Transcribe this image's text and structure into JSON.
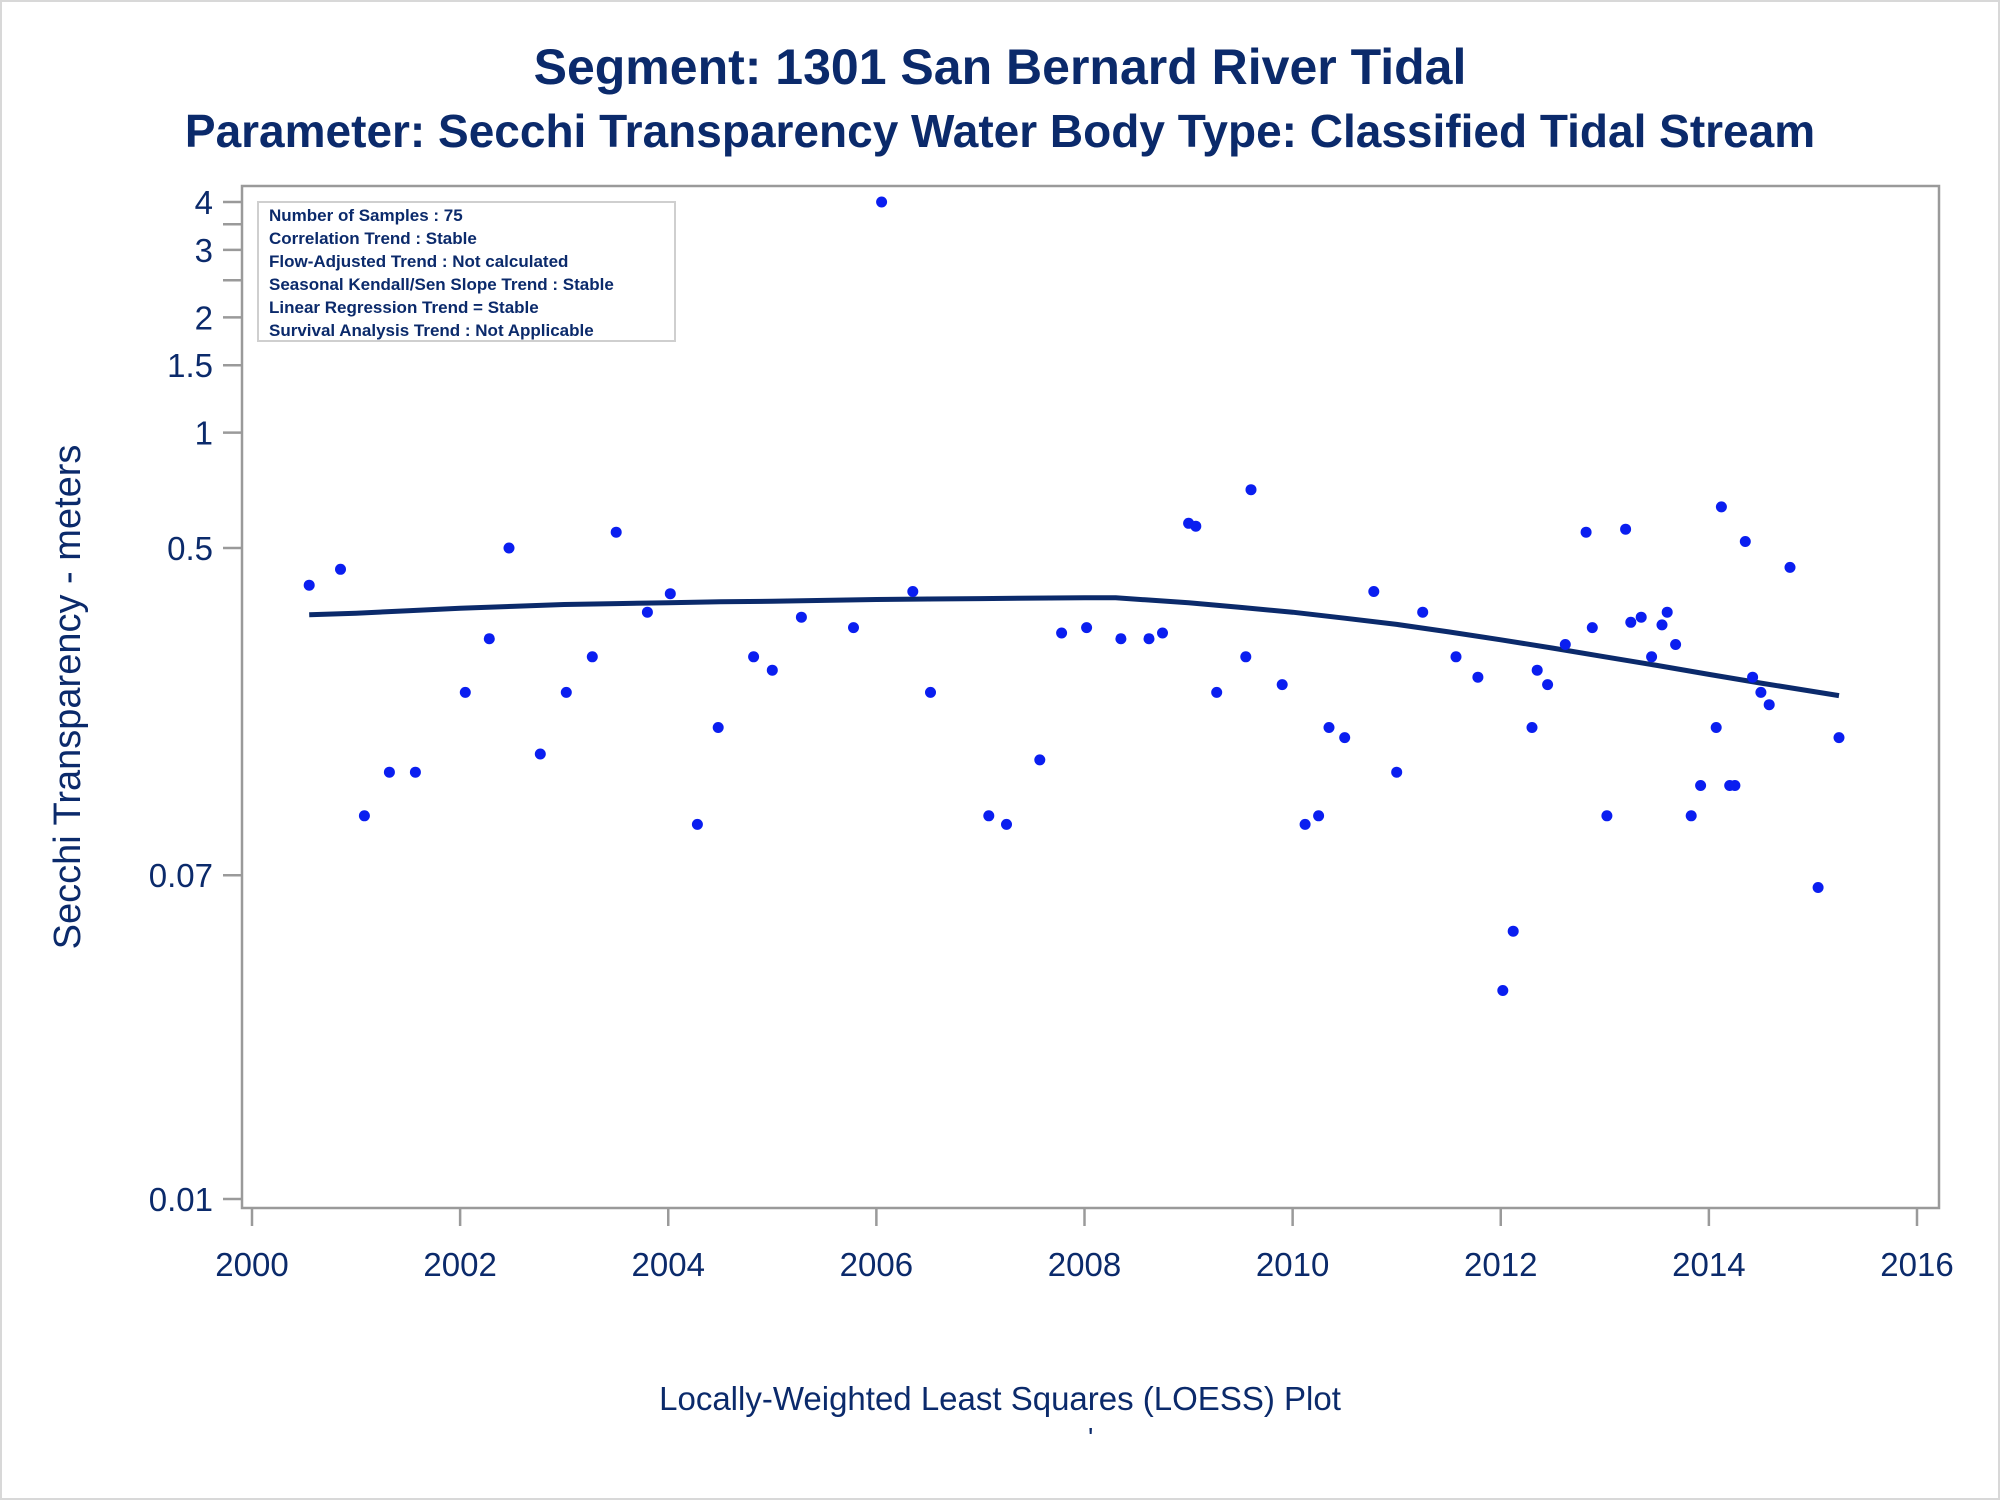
{
  "titles": {
    "line1": "Segment: 1301  San Bernard River Tidal",
    "line2": "Parameter: Secchi Transparency   Water Body Type: Classified Tidal Stream"
  },
  "stats_box": [
    "Number of Samples : 75",
    "Correlation Trend : Stable",
    "Flow-Adjusted Trend : Not calculated",
    "Seasonal Kendall/Sen Slope Trend : Stable",
    "Linear Regression Trend = Stable",
    "Survival Analysis Trend : Not Applicable"
  ],
  "footnote": "Locally-Weighted Least Squares (LOESS) Plot",
  "footnote_mark": "'",
  "colors": {
    "text": "#0b2a6b",
    "points": "#0a1ef0",
    "loess_line": "#0b2a6b",
    "axis": "#9a9a9a"
  },
  "chart_data": {
    "type": "scatter",
    "ylabel": "Secchi Transparency - meters",
    "xlabel": "",
    "y_scale": "log",
    "xlim": [
      2000,
      2016
    ],
    "ylim": [
      0.01,
      4
    ],
    "x_ticks": [
      2000,
      2002,
      2004,
      2006,
      2008,
      2010,
      2012,
      2014,
      2016
    ],
    "y_ticks_labeled": [
      0.01,
      0.07,
      0.5,
      1,
      1.5,
      2,
      3,
      4
    ],
    "y_ticks_minor": [
      2.5,
      3.5
    ],
    "grid": false,
    "series": [
      {
        "kind": "points",
        "values": [
          [
            2000.55,
            0.4
          ],
          [
            2000.85,
            0.44
          ],
          [
            2001.08,
            0.1
          ],
          [
            2001.32,
            0.13
          ],
          [
            2001.57,
            0.13
          ],
          [
            2002.05,
            0.21
          ],
          [
            2002.28,
            0.29
          ],
          [
            2002.47,
            0.5
          ],
          [
            2002.77,
            0.145
          ],
          [
            2003.02,
            0.21
          ],
          [
            2003.27,
            0.26
          ],
          [
            2003.5,
            0.55
          ],
          [
            2003.8,
            0.34
          ],
          [
            2004.02,
            0.38
          ],
          [
            2004.28,
            0.095
          ],
          [
            2004.48,
            0.17
          ],
          [
            2004.82,
            0.26
          ],
          [
            2005.0,
            0.24
          ],
          [
            2005.28,
            0.33
          ],
          [
            2005.78,
            0.31
          ],
          [
            2006.05,
            4.0
          ],
          [
            2006.35,
            0.385
          ],
          [
            2006.52,
            0.21
          ],
          [
            2007.08,
            0.1
          ],
          [
            2007.25,
            0.095
          ],
          [
            2007.57,
            0.14
          ],
          [
            2007.78,
            0.3
          ],
          [
            2008.02,
            0.31
          ],
          [
            2008.35,
            0.29
          ],
          [
            2008.62,
            0.29
          ],
          [
            2008.75,
            0.3
          ],
          [
            2009.0,
            0.58
          ],
          [
            2009.07,
            0.57
          ],
          [
            2009.27,
            0.21
          ],
          [
            2009.55,
            0.26
          ],
          [
            2009.6,
            0.71
          ],
          [
            2009.9,
            0.22
          ],
          [
            2010.12,
            0.095
          ],
          [
            2010.25,
            0.1
          ],
          [
            2010.35,
            0.17
          ],
          [
            2010.5,
            0.16
          ],
          [
            2010.78,
            0.385
          ],
          [
            2011.0,
            0.13
          ],
          [
            2011.25,
            0.34
          ],
          [
            2011.57,
            0.26
          ],
          [
            2011.78,
            0.23
          ],
          [
            2012.02,
            0.035
          ],
          [
            2012.12,
            0.05
          ],
          [
            2012.3,
            0.17
          ],
          [
            2012.35,
            0.24
          ],
          [
            2012.45,
            0.22
          ],
          [
            2012.62,
            0.28
          ],
          [
            2012.82,
            0.55
          ],
          [
            2012.88,
            0.31
          ],
          [
            2013.02,
            0.1
          ],
          [
            2013.2,
            0.56
          ],
          [
            2013.25,
            0.32
          ],
          [
            2013.35,
            0.33
          ],
          [
            2013.45,
            0.26
          ],
          [
            2013.55,
            0.315
          ],
          [
            2013.6,
            0.34
          ],
          [
            2013.68,
            0.28
          ],
          [
            2013.83,
            0.1
          ],
          [
            2013.92,
            0.12
          ],
          [
            2014.07,
            0.17
          ],
          [
            2014.12,
            0.64
          ],
          [
            2014.2,
            0.12
          ],
          [
            2014.25,
            0.12
          ],
          [
            2014.35,
            0.52
          ],
          [
            2014.42,
            0.23
          ],
          [
            2014.5,
            0.21
          ],
          [
            2014.58,
            0.195
          ],
          [
            2014.78,
            0.445
          ],
          [
            2015.05,
            0.065
          ],
          [
            2015.25,
            0.16
          ]
        ]
      },
      {
        "kind": "loess_line",
        "values": [
          [
            2000.55,
            0.335
          ],
          [
            2001.0,
            0.338
          ],
          [
            2001.5,
            0.343
          ],
          [
            2002.0,
            0.348
          ],
          [
            2002.5,
            0.352
          ],
          [
            2003.0,
            0.356
          ],
          [
            2003.5,
            0.358
          ],
          [
            2004.0,
            0.36
          ],
          [
            2004.5,
            0.362
          ],
          [
            2005.0,
            0.363
          ],
          [
            2005.5,
            0.365
          ],
          [
            2006.0,
            0.367
          ],
          [
            2006.5,
            0.368
          ],
          [
            2007.0,
            0.369
          ],
          [
            2007.5,
            0.37
          ],
          [
            2008.0,
            0.371
          ],
          [
            2008.3,
            0.371
          ],
          [
            2008.6,
            0.366
          ],
          [
            2009.0,
            0.36
          ],
          [
            2009.5,
            0.35
          ],
          [
            2010.0,
            0.34
          ],
          [
            2010.5,
            0.328
          ],
          [
            2011.0,
            0.316
          ],
          [
            2011.5,
            0.302
          ],
          [
            2012.0,
            0.288
          ],
          [
            2012.5,
            0.274
          ],
          [
            2013.0,
            0.26
          ],
          [
            2013.5,
            0.247
          ],
          [
            2014.0,
            0.234
          ],
          [
            2014.5,
            0.222
          ],
          [
            2015.25,
            0.206
          ]
        ]
      }
    ]
  }
}
